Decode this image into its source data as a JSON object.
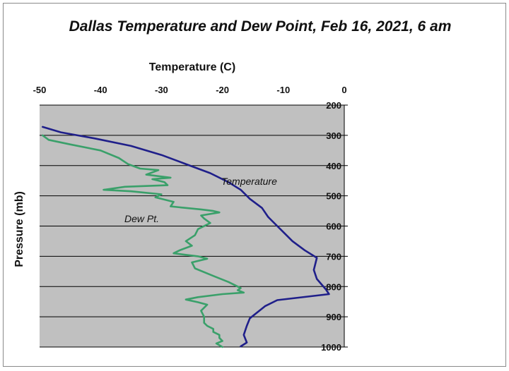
{
  "chart_data": {
    "type": "line",
    "title": "Dallas Temperature and Dew Point, Feb 16, 2021, 6 am",
    "xlabel": "Temperature (C)",
    "ylabel": "Pressure (mb)",
    "xlim": [
      -50,
      0
    ],
    "ylim": [
      1000,
      200
    ],
    "x_ticks": [
      "-50",
      "-40",
      "-30",
      "-20",
      "-10",
      "0"
    ],
    "y_ticks": [
      "200",
      "300",
      "400",
      "500",
      "600",
      "700",
      "800",
      "900",
      "1000"
    ],
    "x_axis_position": "top",
    "y_axis_position": "right",
    "y_inverted": true,
    "grid": "horizontal",
    "plot_background": "#c0c0c0",
    "annotations": [
      {
        "text": "Temperature",
        "series": 0
      },
      {
        "text": "Dew Pt.",
        "series": 1
      }
    ],
    "series": [
      {
        "name": "Temperature",
        "color": "#1f1f8a",
        "points": [
          [
            -49.5,
            272
          ],
          [
            -46.5,
            290
          ],
          [
            -41,
            310
          ],
          [
            -35,
            335
          ],
          [
            -30,
            365
          ],
          [
            -26,
            395
          ],
          [
            -22,
            425
          ],
          [
            -19,
            455
          ],
          [
            -17,
            480
          ],
          [
            -15.5,
            510
          ],
          [
            -13.5,
            540
          ],
          [
            -12.5,
            570
          ],
          [
            -11,
            600
          ],
          [
            -10,
            620
          ],
          [
            -8.5,
            650
          ],
          [
            -6.5,
            680
          ],
          [
            -4.5,
            705
          ],
          [
            -5,
            745
          ],
          [
            -4.5,
            775
          ],
          [
            -3,
            810
          ],
          [
            -2.5,
            825
          ],
          [
            -5.5,
            832
          ],
          [
            -11,
            845
          ],
          [
            -13,
            865
          ],
          [
            -15.5,
            905
          ],
          [
            -16,
            930
          ],
          [
            -16.5,
            960
          ],
          [
            -16,
            985
          ],
          [
            -17,
            998
          ]
        ]
      },
      {
        "name": "Dew Pt.",
        "color": "#3aa06a",
        "points": [
          [
            -49.5,
            300
          ],
          [
            -48.5,
            315
          ],
          [
            -45,
            330
          ],
          [
            -40,
            350
          ],
          [
            -37,
            375
          ],
          [
            -35.5,
            395
          ],
          [
            -33.5,
            410
          ],
          [
            -30.5,
            415
          ],
          [
            -32.5,
            430
          ],
          [
            -28.5,
            440
          ],
          [
            -31.5,
            445
          ],
          [
            -29.5,
            455
          ],
          [
            -29,
            465
          ],
          [
            -36,
            470
          ],
          [
            -39.5,
            480
          ],
          [
            -35,
            485
          ],
          [
            -30,
            495
          ],
          [
            -31,
            505
          ],
          [
            -28,
            520
          ],
          [
            -28.5,
            535
          ],
          [
            -26,
            540
          ],
          [
            -23.5,
            545
          ],
          [
            -21.5,
            550
          ],
          [
            -20.5,
            555
          ],
          [
            -23.5,
            565
          ],
          [
            -23,
            575
          ],
          [
            -22,
            590
          ],
          [
            -24,
            610
          ],
          [
            -24.5,
            630
          ],
          [
            -26,
            650
          ],
          [
            -25,
            665
          ],
          [
            -27,
            680
          ],
          [
            -28,
            690
          ],
          [
            -24,
            700
          ],
          [
            -22.5,
            708
          ],
          [
            -25,
            720
          ],
          [
            -24.5,
            740
          ],
          [
            -21.5,
            765
          ],
          [
            -19,
            785
          ],
          [
            -18,
            795
          ],
          [
            -17,
            805
          ],
          [
            -17.5,
            812
          ],
          [
            -16.5,
            820
          ],
          [
            -20,
            825
          ],
          [
            -24,
            835
          ],
          [
            -26,
            843
          ],
          [
            -24,
            852
          ],
          [
            -22.5,
            860
          ],
          [
            -23,
            870
          ],
          [
            -23.5,
            880
          ],
          [
            -23,
            900
          ],
          [
            -23,
            920
          ],
          [
            -22.5,
            930
          ],
          [
            -21.5,
            940
          ],
          [
            -21.5,
            950
          ],
          [
            -20.5,
            960
          ],
          [
            -20.5,
            970
          ],
          [
            -20,
            980
          ],
          [
            -21,
            988
          ],
          [
            -20,
            1000
          ]
        ]
      }
    ]
  }
}
